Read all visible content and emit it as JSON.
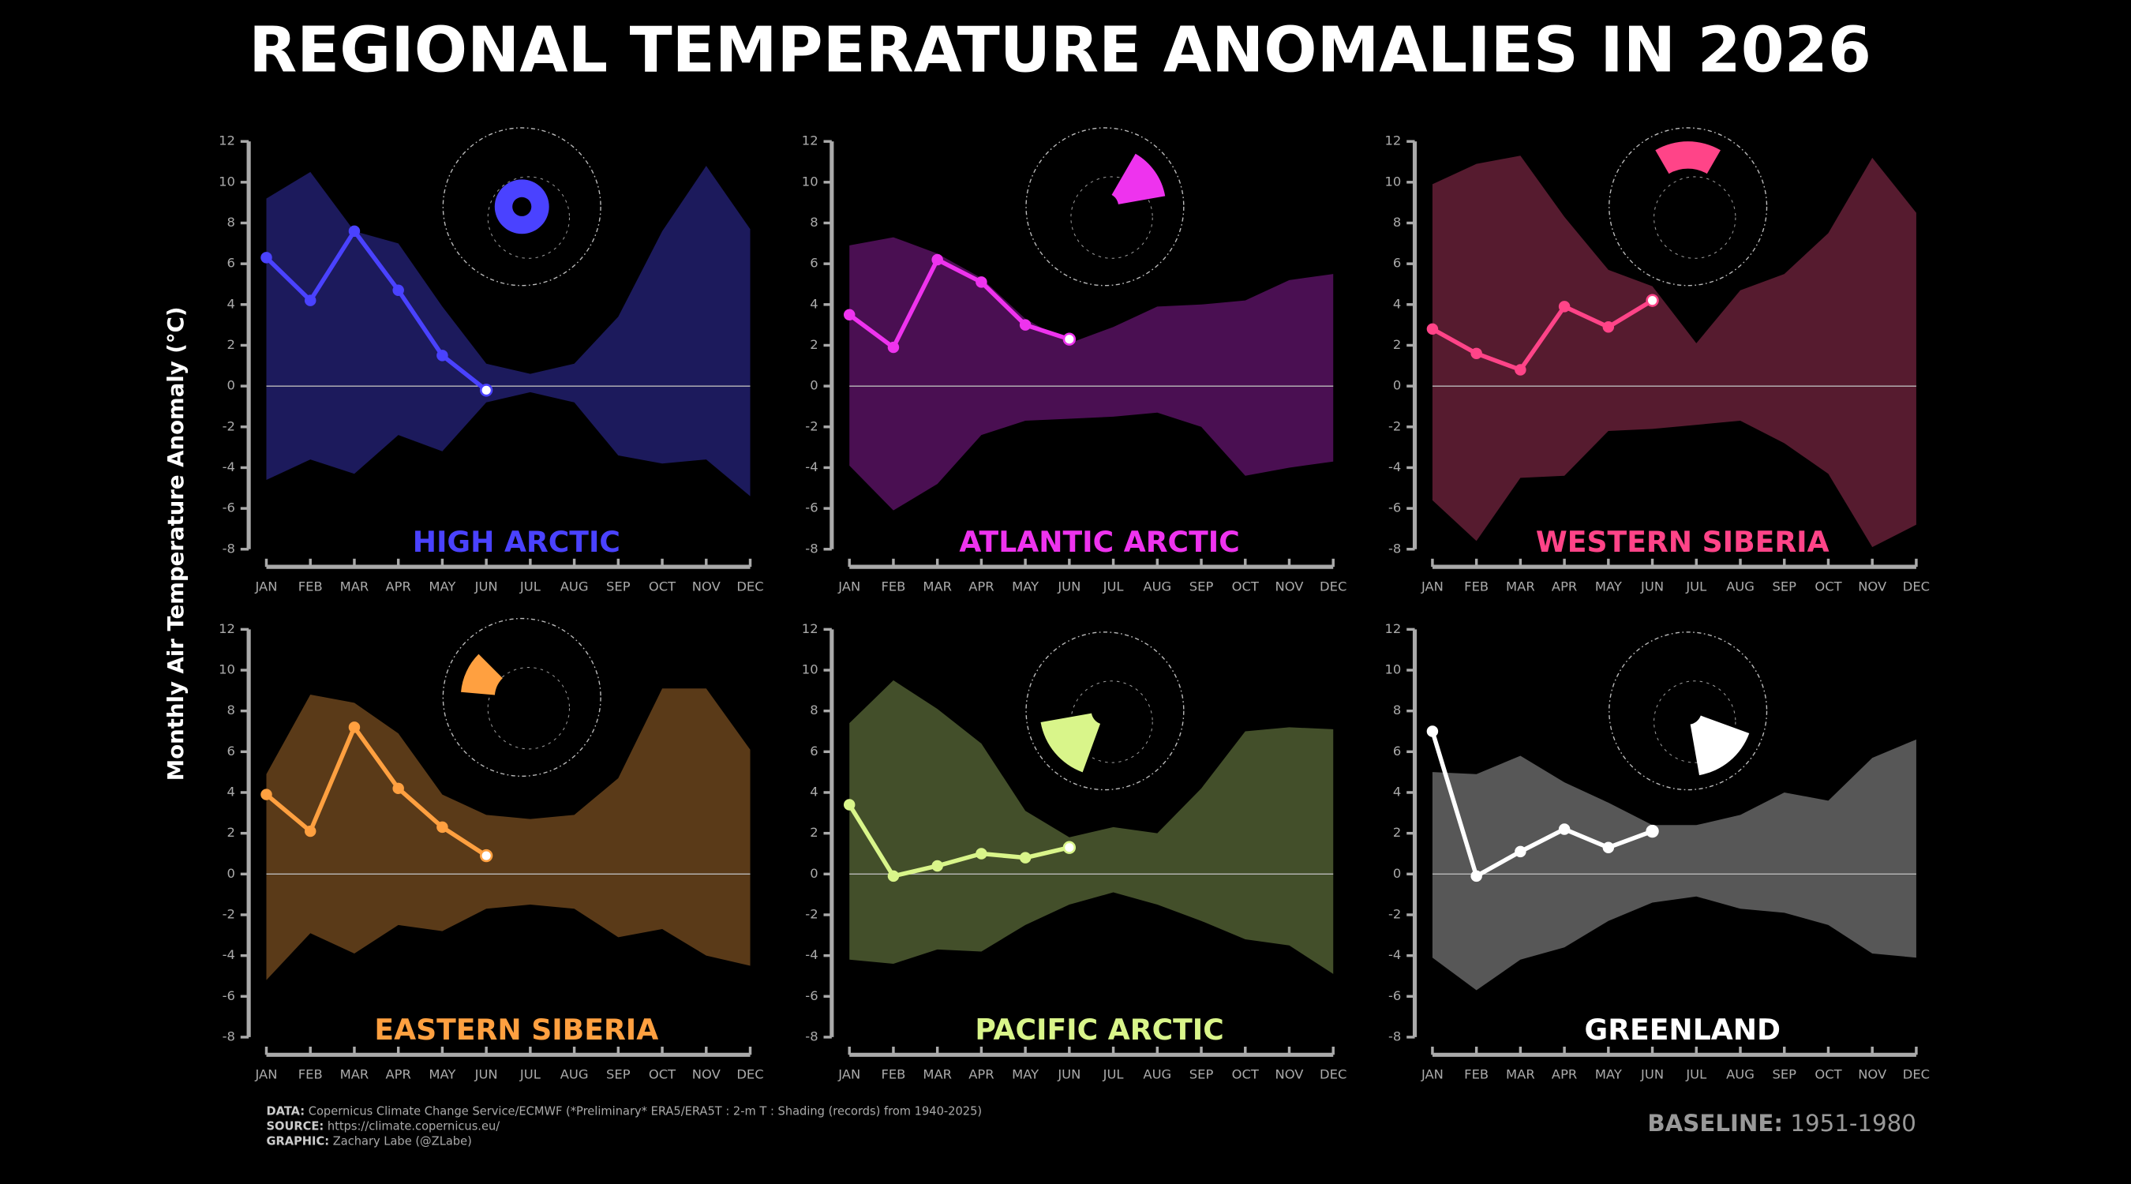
{
  "title": "REGIONAL TEMPERATURE ANOMALIES IN 2026",
  "ylabel": "Monthly Air Temperature Anomaly (°C)",
  "notes": [
    {
      "label": "DATA:",
      "text": "Copernicus Climate Change Service/ECMWF (*Preliminary* ERA5/ERA5T : 2-m T : Shading (records) from 1940-2025)"
    },
    {
      "label": "SOURCE:",
      "text": "https://climate.copernicus.eu/"
    },
    {
      "label": "GRAPHIC:",
      "text": "Zachary Labe (@ZLabe)"
    }
  ],
  "baseline": {
    "label": "BASELINE:",
    "text": "1951-1980"
  },
  "chart_data": [
    {
      "type": "line",
      "title": "HIGH ARCTIC",
      "color": "#4a42ff",
      "fill": "#1c1a5c",
      "categories": [
        "JAN",
        "FEB",
        "MAR",
        "APR",
        "MAY",
        "JUN",
        "JUL",
        "AUG",
        "SEP",
        "OCT",
        "NOV",
        "DEC"
      ],
      "values": [
        6.3,
        4.2,
        7.6,
        4.7,
        1.5,
        -0.2,
        null,
        null,
        null,
        null,
        null,
        null
      ],
      "range": {
        "upper": [
          9.2,
          10.5,
          7.6,
          7.0,
          3.9,
          1.1,
          0.6,
          1.1,
          3.4,
          7.6,
          10.8,
          7.7
        ],
        "lower": [
          -4.6,
          -3.6,
          -4.3,
          -2.4,
          -3.2,
          -0.8,
          -0.3,
          -0.8,
          -3.4,
          -3.8,
          -3.6,
          -5.4
        ]
      },
      "ylim": [
        -8,
        12
      ],
      "yticks": [
        -8,
        -6,
        -4,
        -2,
        0,
        2,
        4,
        6,
        8,
        10,
        12
      ]
    },
    {
      "type": "line",
      "title": "ATLANTIC ARCTIC",
      "color": "#ee33ee",
      "fill": "#4a0f52",
      "categories": [
        "JAN",
        "FEB",
        "MAR",
        "APR",
        "MAY",
        "JUN",
        "JUL",
        "AUG",
        "SEP",
        "OCT",
        "NOV",
        "DEC"
      ],
      "values": [
        3.5,
        1.9,
        6.2,
        5.1,
        3.0,
        2.3,
        null,
        null,
        null,
        null,
        null,
        null
      ],
      "range": {
        "upper": [
          6.9,
          7.3,
          6.5,
          5.3,
          3.3,
          2.1,
          2.9,
          3.9,
          4.0,
          4.2,
          5.2,
          5.5
        ],
        "lower": [
          -3.9,
          -6.1,
          -4.8,
          -2.4,
          -1.7,
          -1.6,
          -1.5,
          -1.3,
          -2.0,
          -4.4,
          -4.0,
          -3.7
        ]
      },
      "ylim": [
        -8,
        12
      ],
      "yticks": [
        -8,
        -6,
        -4,
        -2,
        0,
        2,
        4,
        6,
        8,
        10,
        12
      ]
    },
    {
      "type": "line",
      "title": "WESTERN SIBERIA",
      "color": "#ff4488",
      "fill": "#561b2f",
      "categories": [
        "JAN",
        "FEB",
        "MAR",
        "APR",
        "MAY",
        "JUN",
        "JUL",
        "AUG",
        "SEP",
        "OCT",
        "NOV",
        "DEC"
      ],
      "values": [
        2.8,
        1.6,
        0.8,
        3.9,
        2.9,
        4.2,
        null,
        null,
        null,
        null,
        null,
        null
      ],
      "range": {
        "upper": [
          9.9,
          10.9,
          11.3,
          8.3,
          5.7,
          4.9,
          2.1,
          4.7,
          5.5,
          7.5,
          11.2,
          8.5
        ],
        "lower": [
          -5.6,
          -7.6,
          -4.5,
          -4.4,
          -2.2,
          -2.1,
          -1.9,
          -1.7,
          -2.8,
          -4.3,
          -7.9,
          -6.8
        ]
      },
      "ylim": [
        -8,
        12
      ],
      "yticks": [
        -8,
        -6,
        -4,
        -2,
        0,
        2,
        4,
        6,
        8,
        10,
        12
      ]
    },
    {
      "type": "line",
      "title": "EASTERN SIBERIA",
      "color": "#ffa040",
      "fill": "#5a3a18",
      "categories": [
        "JAN",
        "FEB",
        "MAR",
        "APR",
        "MAY",
        "JUN",
        "JUL",
        "AUG",
        "SEP",
        "OCT",
        "NOV",
        "DEC"
      ],
      "values": [
        3.9,
        2.1,
        7.2,
        4.2,
        2.3,
        0.9,
        null,
        null,
        null,
        null,
        null,
        null
      ],
      "range": {
        "upper": [
          4.9,
          8.8,
          8.4,
          6.9,
          3.9,
          2.9,
          2.7,
          2.9,
          4.7,
          9.1,
          9.1,
          6.1
        ],
        "lower": [
          -5.2,
          -2.9,
          -3.9,
          -2.5,
          -2.8,
          -1.7,
          -1.5,
          -1.7,
          -3.1,
          -2.7,
          -4.0,
          -4.5
        ]
      },
      "ylim": [
        -8,
        12
      ],
      "yticks": [
        -8,
        -6,
        -4,
        -2,
        0,
        2,
        4,
        6,
        8,
        10,
        12
      ]
    },
    {
      "type": "line",
      "title": "PACIFIC ARCTIC",
      "color": "#d9f58a",
      "fill": "#434f2a",
      "categories": [
        "JAN",
        "FEB",
        "MAR",
        "APR",
        "MAY",
        "JUN",
        "JUL",
        "AUG",
        "SEP",
        "OCT",
        "NOV",
        "DEC"
      ],
      "values": [
        3.4,
        -0.1,
        0.4,
        1.0,
        0.8,
        1.3,
        null,
        null,
        null,
        null,
        null,
        null
      ],
      "range": {
        "upper": [
          7.4,
          9.5,
          8.1,
          6.4,
          3.1,
          1.8,
          2.3,
          2.0,
          4.2,
          7.0,
          7.2,
          7.1
        ],
        "lower": [
          -4.2,
          -4.4,
          -3.7,
          -3.8,
          -2.5,
          -1.5,
          -0.9,
          -1.5,
          -2.3,
          -3.2,
          -3.5,
          -4.9
        ]
      },
      "ylim": [
        -8,
        12
      ],
      "yticks": [
        -8,
        -6,
        -4,
        -2,
        0,
        2,
        4,
        6,
        8,
        10,
        12
      ]
    },
    {
      "type": "line",
      "title": "GREENLAND",
      "color": "#ffffff",
      "fill": "#575757",
      "categories": [
        "JAN",
        "FEB",
        "MAR",
        "APR",
        "MAY",
        "JUN",
        "JUL",
        "AUG",
        "SEP",
        "OCT",
        "NOV",
        "DEC"
      ],
      "values": [
        7.0,
        -0.1,
        1.1,
        2.2,
        1.3,
        2.1,
        null,
        null,
        null,
        null,
        null,
        null
      ],
      "range": {
        "upper": [
          5.0,
          4.9,
          5.8,
          4.5,
          3.5,
          2.4,
          2.4,
          2.9,
          4.0,
          3.6,
          5.7,
          6.6
        ],
        "lower": [
          -4.1,
          -5.7,
          -4.2,
          -3.6,
          -2.3,
          -1.4,
          -1.1,
          -1.7,
          -1.9,
          -2.5,
          -3.9,
          -4.1
        ]
      },
      "ylim": [
        -8,
        12
      ],
      "yticks": [
        -8,
        -6,
        -4,
        -2,
        0,
        2,
        4,
        6,
        8,
        10,
        12
      ]
    }
  ]
}
